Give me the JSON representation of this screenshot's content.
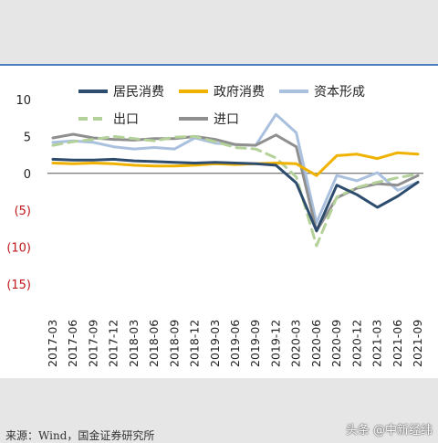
{
  "chart_data": {
    "type": "line",
    "x": [
      "2017-03",
      "2017-06",
      "2017-09",
      "2017-12",
      "2018-03",
      "2018-06",
      "2018-09",
      "2018-12",
      "2019-03",
      "2019-06",
      "2019-09",
      "2019-12",
      "2020-03",
      "2020-06",
      "2020-09",
      "2020-12",
      "2021-03",
      "2021-06",
      "2021-09"
    ],
    "ylim": [
      -15,
      10
    ],
    "yticks": [
      {
        "value": 10,
        "label": "10"
      },
      {
        "value": 5,
        "label": "5"
      },
      {
        "value": 0,
        "label": "0"
      },
      {
        "value": -5,
        "label": "(5)"
      },
      {
        "value": -10,
        "label": "(10)"
      },
      {
        "value": -15,
        "label": "(15)"
      }
    ],
    "grid": false,
    "legend_position": "top",
    "series": [
      {
        "name": "居民消费",
        "color": "#2e4c6d",
        "style": "solid",
        "values": [
          1.9,
          1.8,
          1.8,
          1.9,
          1.7,
          1.6,
          1.5,
          1.4,
          1.5,
          1.4,
          1.3,
          1.1,
          -1.3,
          -7.8,
          -1.6,
          -2.9,
          -4.6,
          -3.1,
          -1.2
        ]
      },
      {
        "name": "政府消费",
        "color": "#f0b200",
        "style": "solid",
        "values": [
          1.4,
          1.3,
          1.4,
          1.3,
          1.1,
          1.0,
          1.0,
          1.1,
          1.3,
          1.2,
          1.3,
          1.4,
          1.3,
          -0.3,
          2.4,
          2.6,
          2.0,
          2.8,
          2.6
        ]
      },
      {
        "name": "资本形成",
        "color": "#a9c0de",
        "style": "solid",
        "values": [
          4.2,
          4.4,
          4.2,
          3.6,
          3.3,
          3.5,
          3.3,
          4.8,
          4.1,
          3.9,
          3.8,
          8.0,
          5.5,
          -6.7,
          -0.3,
          -1.0,
          0.1,
          -2.3,
          -1.2
        ]
      },
      {
        "name": "出口",
        "color": "#b3d199",
        "style": "dashed",
        "values": [
          3.8,
          4.3,
          4.6,
          5.0,
          4.7,
          4.4,
          4.9,
          5.0,
          4.3,
          3.5,
          3.3,
          2.1,
          -0.5,
          -9.8,
          -3.2,
          -1.9,
          -1.2,
          -0.6,
          -0.1
        ]
      },
      {
        "name": "进口",
        "color": "#8f8f8f",
        "style": "solid",
        "values": [
          4.8,
          5.3,
          4.8,
          4.6,
          4.5,
          4.7,
          4.7,
          5.0,
          4.6,
          3.9,
          3.8,
          5.2,
          3.6,
          -7.8,
          -3.3,
          -2.0,
          -1.4,
          -1.6,
          -0.3
        ]
      }
    ]
  },
  "source_text": "来源：Wind，国金证券研究所",
  "watermark_text": "头条 @中新经纬"
}
